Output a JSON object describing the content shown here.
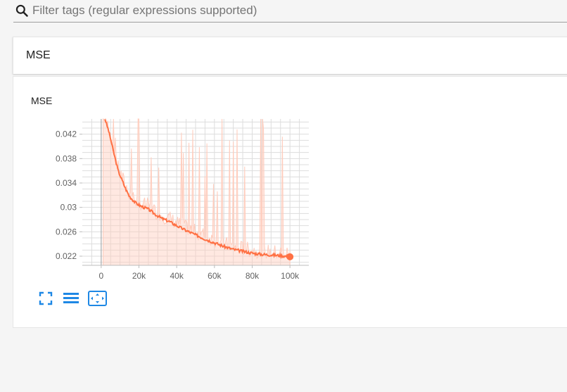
{
  "filter": {
    "placeholder": "Filter tags (regular expressions supported)"
  },
  "category": {
    "title": "MSE"
  },
  "card": {
    "title": "MSE"
  },
  "toolbar": {
    "buttons": [
      "fit-domain-icon",
      "toggle-log-scale-icon",
      "expand-icon"
    ]
  },
  "colors": {
    "accent": "#ff7043",
    "smoothed": "#ff7043",
    "raw": "#ffccbc",
    "icon_blue": "#1e88e5"
  },
  "chart_data": {
    "type": "line",
    "title": "",
    "xlabel": "",
    "ylabel": "",
    "x_ticks": [
      "0",
      "20k",
      "40k",
      "60k",
      "80k",
      "100k"
    ],
    "y_ticks": [
      "0.022",
      "0.026",
      "0.03",
      "0.034",
      "0.038",
      "0.042"
    ],
    "xlim": [
      -10000,
      110000
    ],
    "ylim": [
      0.0205,
      0.0445
    ],
    "series": [
      {
        "name": "",
        "values_x": [
          2000,
          4000,
          5000,
          7000,
          9000,
          11000,
          13000,
          15000,
          18000,
          21000,
          25000,
          28000,
          32000,
          36000,
          40000,
          45000,
          50000,
          55000,
          60000,
          65000,
          70000,
          75000,
          80000,
          85000,
          90000,
          95000,
          100000
        ],
        "values_y": [
          0.0445,
          0.0425,
          0.0412,
          0.0385,
          0.036,
          0.0345,
          0.033,
          0.0318,
          0.0308,
          0.0302,
          0.0297,
          0.029,
          0.0282,
          0.0277,
          0.027,
          0.0262,
          0.0255,
          0.0248,
          0.0242,
          0.0236,
          0.0231,
          0.0228,
          0.0225,
          0.0223,
          0.0222,
          0.0221,
          0.0219
        ]
      }
    ]
  }
}
